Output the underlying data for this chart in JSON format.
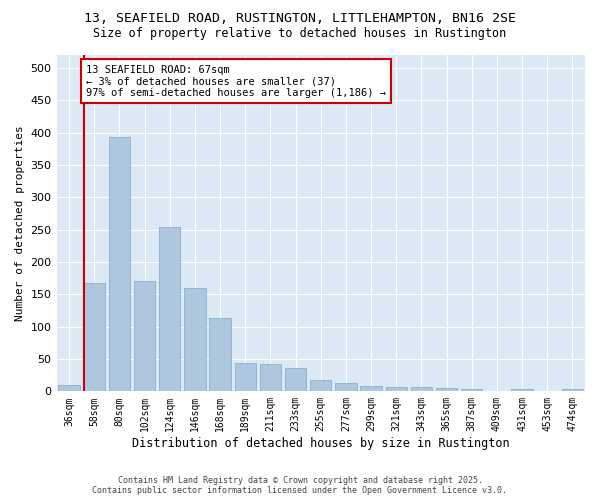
{
  "title_line1": "13, SEAFIELD ROAD, RUSTINGTON, LITTLEHAMPTON, BN16 2SE",
  "title_line2": "Size of property relative to detached houses in Rustington",
  "xlabel": "Distribution of detached houses by size in Rustington",
  "ylabel": "Number of detached properties",
  "categories": [
    "36sqm",
    "58sqm",
    "80sqm",
    "102sqm",
    "124sqm",
    "146sqm",
    "168sqm",
    "189sqm",
    "211sqm",
    "233sqm",
    "255sqm",
    "277sqm",
    "299sqm",
    "321sqm",
    "343sqm",
    "365sqm",
    "387sqm",
    "409sqm",
    "431sqm",
    "453sqm",
    "474sqm"
  ],
  "values": [
    10,
    168,
    393,
    170,
    254,
    160,
    113,
    44,
    43,
    36,
    17,
    13,
    8,
    7,
    6,
    5,
    3,
    0,
    3,
    0,
    3
  ],
  "bar_color": "#aec6de",
  "bar_edge_color": "#7aaac8",
  "vline_color": "#cc0000",
  "vline_x": 0.575,
  "annotation_text": "13 SEAFIELD ROAD: 67sqm\n← 3% of detached houses are smaller (37)\n97% of semi-detached houses are larger (1,186) →",
  "annotation_box_facecolor": "#ffffff",
  "annotation_box_edgecolor": "#cc0000",
  "ylim": [
    0,
    520
  ],
  "yticks": [
    0,
    50,
    100,
    150,
    200,
    250,
    300,
    350,
    400,
    450,
    500
  ],
  "background_color": "#dce9f5",
  "fig_background": "#ffffff",
  "footer_line1": "Contains HM Land Registry data © Crown copyright and database right 2025.",
  "footer_line2": "Contains public sector information licensed under the Open Government Licence v3.0."
}
